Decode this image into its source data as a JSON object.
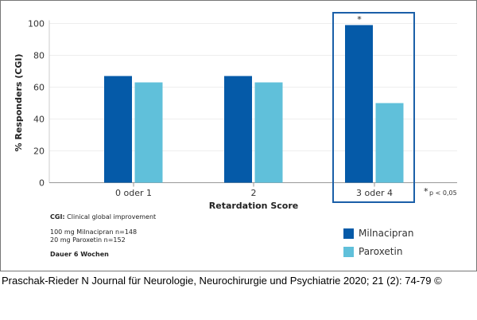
{
  "chart_data": {
    "type": "bar",
    "categories": [
      "0 oder 1",
      "2",
      "3 oder 4"
    ],
    "series": [
      {
        "name": "Milnacipran",
        "values": [
          67,
          67,
          99
        ],
        "color": "#055aa8"
      },
      {
        "name": "Paroxetin",
        "values": [
          63,
          63,
          50
        ],
        "color": "#60c0da"
      }
    ],
    "xlabel": "Retardation Score",
    "ylabel": "% Responders (CGI)",
    "ylim": [
      0,
      100
    ],
    "yticks": [
      0,
      20,
      40,
      60,
      80,
      100
    ],
    "grid": true,
    "legend_placement": "bottom-right",
    "highlighted_category": "3 oder 4",
    "significance_marker": "*",
    "significance_note": "p < 0,05"
  },
  "notes": {
    "cgi_label": "CGI:",
    "cgi_text": "Clinical global improvement",
    "dose1": "100 mg Milnacipran n=148",
    "dose2": "20 mg Paroxetin n=152",
    "duration": "Dauer 6 Wochen"
  },
  "citation": "Praschak-Rieder N Journal für Neurologie, Neurochirurgie und Psychiatrie 2020; 21 (2): 74-79 ©"
}
